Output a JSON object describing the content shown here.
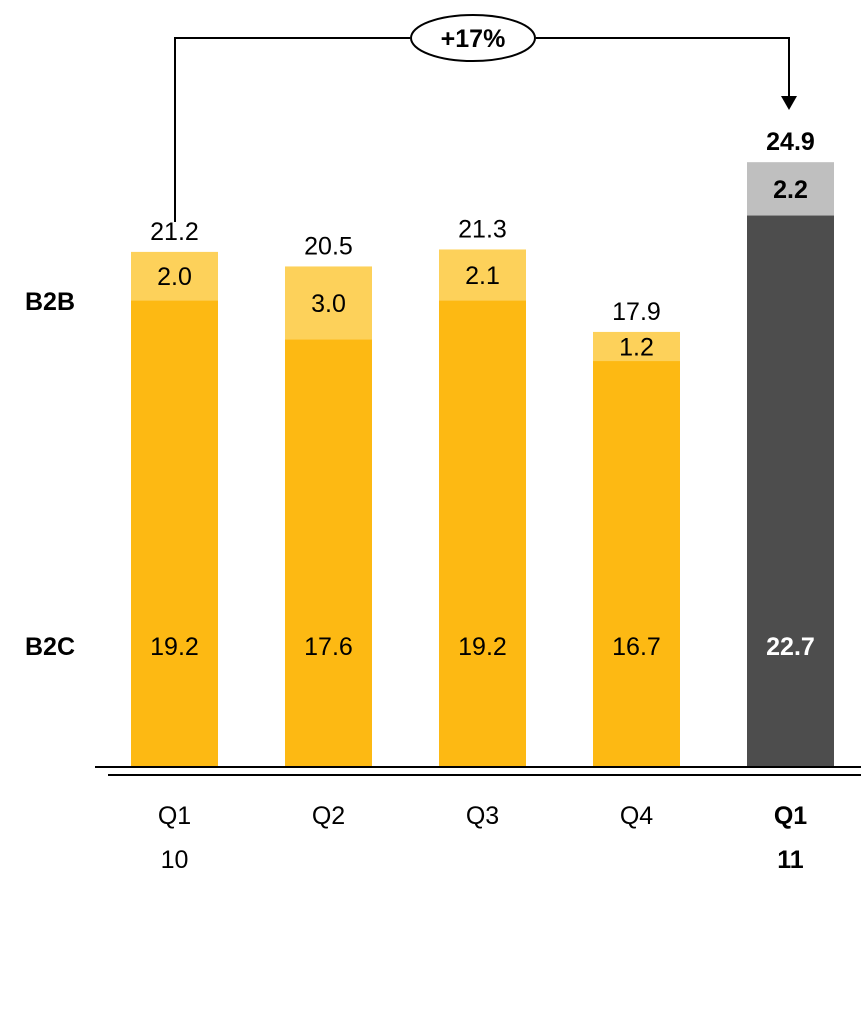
{
  "chart_data": {
    "type": "bar",
    "stacked": true,
    "categories": [
      "Q1 10",
      "Q2",
      "Q3",
      "Q4",
      "Q1 11"
    ],
    "category_labels": [
      {
        "line1": "Q1",
        "line2": "10",
        "bold": false
      },
      {
        "line1": "Q2",
        "line2": "",
        "bold": false
      },
      {
        "line1": "Q3",
        "line2": "",
        "bold": false
      },
      {
        "line1": "Q4",
        "line2": "",
        "bold": false
      },
      {
        "line1": "Q1",
        "line2": "11",
        "bold": true
      }
    ],
    "series": [
      {
        "name": "B2C",
        "values": [
          19.2,
          17.6,
          19.2,
          16.7,
          22.7
        ]
      },
      {
        "name": "B2B",
        "values": [
          2.0,
          3.0,
          2.1,
          1.2,
          2.2
        ]
      }
    ],
    "totals": [
      21.2,
      20.5,
      21.3,
      17.9,
      24.9
    ],
    "ylim": [
      0,
      25
    ],
    "grid": false,
    "growth_annotation": {
      "label": "+17%",
      "from": "Q1 10",
      "to": "Q1 11"
    }
  },
  "colors": {
    "b2c": "#FDB913",
    "b2b": "#FDD15A",
    "b2c_highlight": "#4D4D4D",
    "b2b_highlight": "#BFBFBF",
    "text": "#000000",
    "text_on_dark": "#FFFFFF"
  }
}
